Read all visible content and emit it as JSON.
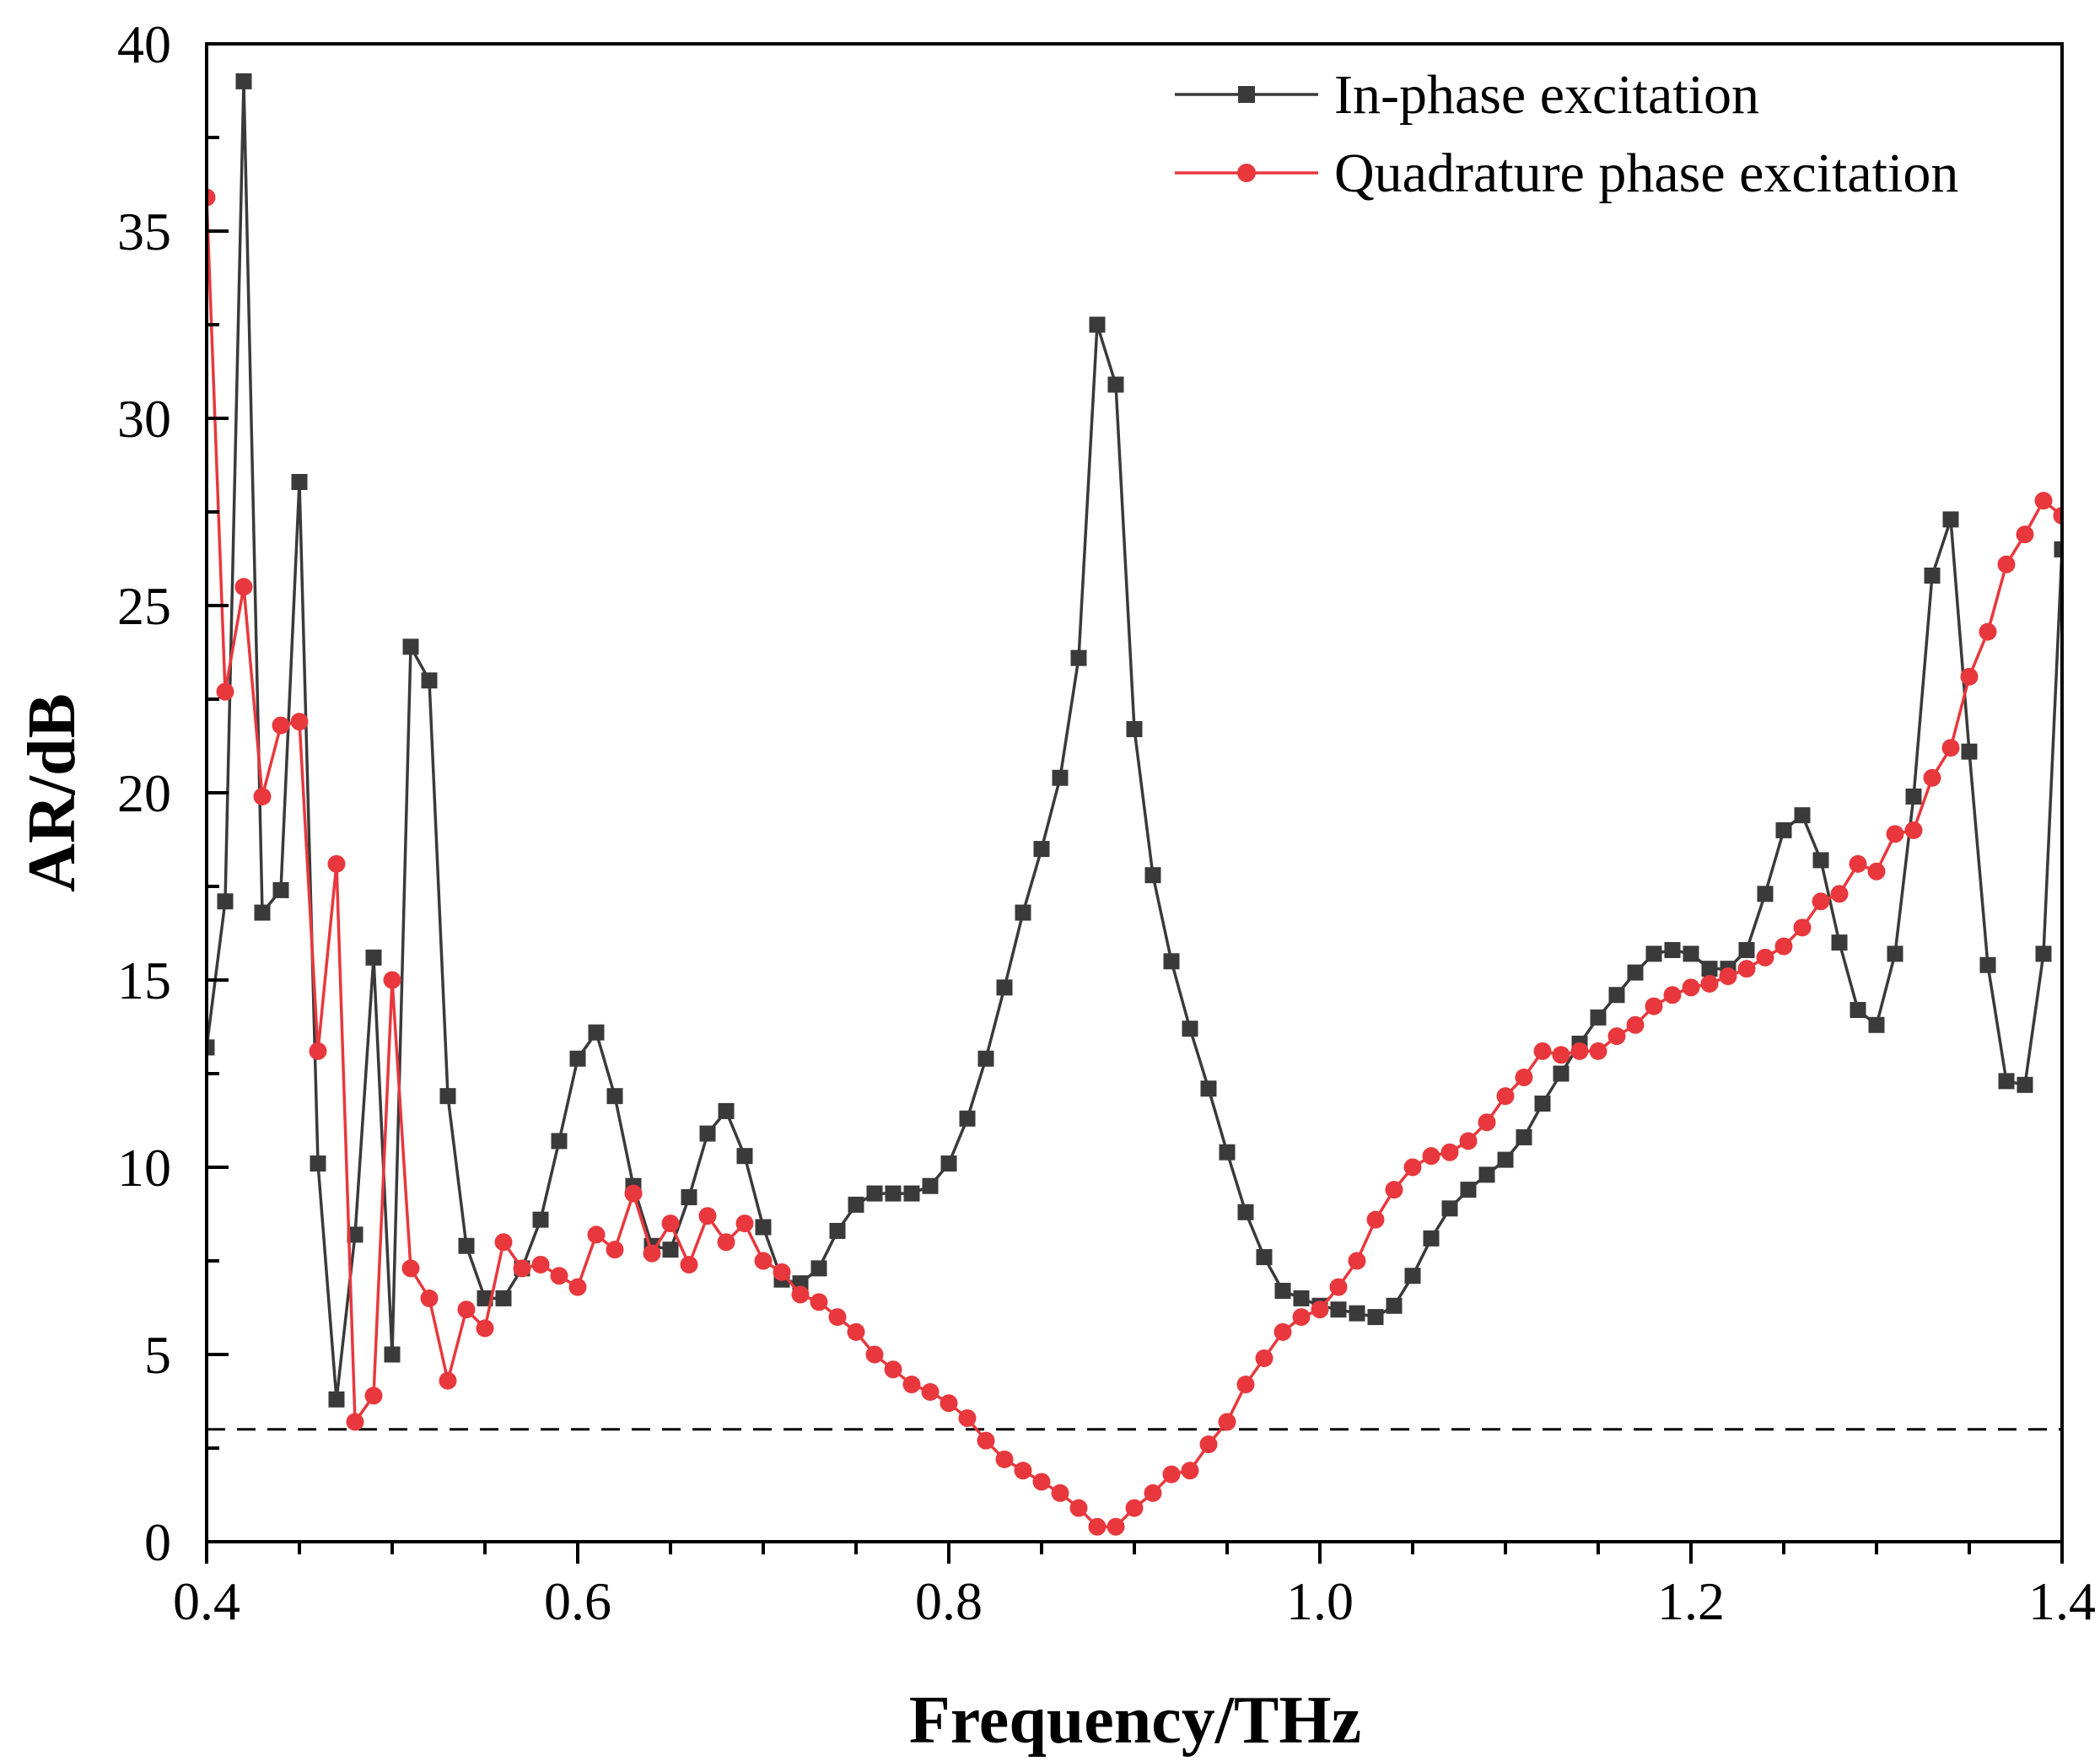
{
  "chart_data": {
    "type": "line",
    "xlabel": "Frequency/THz",
    "ylabel": "AR/dB",
    "xlim": [
      0.4,
      1.4
    ],
    "ylim": [
      0,
      40
    ],
    "x_ticks": [
      "0.4",
      "0.6",
      "0.8",
      "1.0",
      "1.2",
      "1.4"
    ],
    "x_tick_values": [
      0.4,
      0.6,
      0.8,
      1.0,
      1.2,
      1.4
    ],
    "y_ticks": [
      "0",
      "5",
      "10",
      "15",
      "20",
      "25",
      "30",
      "35",
      "40"
    ],
    "y_tick_values": [
      0,
      5,
      10,
      15,
      20,
      25,
      30,
      35,
      40
    ],
    "grid": false,
    "legend_position": "top-right",
    "reference_line": {
      "y": 3,
      "style": "dashed",
      "color": "#000000"
    },
    "x": [
      0.4,
      0.41,
      0.42,
      0.43,
      0.44,
      0.45,
      0.46,
      0.47,
      0.48,
      0.49,
      0.5,
      0.51,
      0.52,
      0.53,
      0.54,
      0.55,
      0.56,
      0.57,
      0.58,
      0.59,
      0.6,
      0.61,
      0.62,
      0.63,
      0.64,
      0.65,
      0.66,
      0.67,
      0.68,
      0.69,
      0.7,
      0.71,
      0.72,
      0.73,
      0.74,
      0.75,
      0.76,
      0.77,
      0.78,
      0.79,
      0.8,
      0.81,
      0.82,
      0.83,
      0.84,
      0.85,
      0.86,
      0.87,
      0.88,
      0.89,
      0.9,
      0.91,
      0.92,
      0.93,
      0.94,
      0.95,
      0.96,
      0.97,
      0.98,
      0.99,
      1.0,
      1.01,
      1.02,
      1.03,
      1.04,
      1.05,
      1.06,
      1.07,
      1.08,
      1.09,
      1.1,
      1.11,
      1.12,
      1.13,
      1.14,
      1.15,
      1.16,
      1.17,
      1.18,
      1.19,
      1.2,
      1.21,
      1.22,
      1.23,
      1.24,
      1.25,
      1.26,
      1.27,
      1.28,
      1.29,
      1.3,
      1.31,
      1.32,
      1.33,
      1.34,
      1.35,
      1.36,
      1.37,
      1.38,
      1.39,
      1.4
    ],
    "series": [
      {
        "name": "In-phase excitation",
        "color": "#3a3a3a",
        "marker": "square",
        "values": [
          13.2,
          17.1,
          39.0,
          16.8,
          17.4,
          28.3,
          10.1,
          3.8,
          8.2,
          15.6,
          5.0,
          23.9,
          23.0,
          11.9,
          7.9,
          6.5,
          6.5,
          7.3,
          8.6,
          10.7,
          12.9,
          13.6,
          11.9,
          9.5,
          7.9,
          7.8,
          9.2,
          10.9,
          11.5,
          10.3,
          8.4,
          7.0,
          6.9,
          7.3,
          8.3,
          9.0,
          9.3,
          9.3,
          9.3,
          9.5,
          10.1,
          11.3,
          12.9,
          14.8,
          16.8,
          18.5,
          20.4,
          23.6,
          32.5,
          30.9,
          21.7,
          17.8,
          15.5,
          13.7,
          12.1,
          10.4,
          8.8,
          7.6,
          6.7,
          6.5,
          6.3,
          6.2,
          6.1,
          6.0,
          6.3,
          7.1,
          8.1,
          8.9,
          9.4,
          9.8,
          10.2,
          10.8,
          11.7,
          12.5,
          13.3,
          14.0,
          14.6,
          15.2,
          15.7,
          15.8,
          15.7,
          15.3,
          15.3,
          15.8,
          17.3,
          19.0,
          19.4,
          18.2,
          16.0,
          14.2,
          13.8,
          15.7,
          19.9,
          25.8,
          27.3,
          21.1,
          15.4,
          12.3,
          12.2,
          15.7,
          26.5
        ]
      },
      {
        "name": "Quadrature phase excitation",
        "color": "#e8383d",
        "marker": "circle",
        "values": [
          35.9,
          22.7,
          25.5,
          19.9,
          21.8,
          21.9,
          13.1,
          18.1,
          3.2,
          3.9,
          15.0,
          7.3,
          6.5,
          4.3,
          6.2,
          5.7,
          8.0,
          7.3,
          7.4,
          7.1,
          6.8,
          8.2,
          7.8,
          9.3,
          7.7,
          8.5,
          7.4,
          8.7,
          8.0,
          8.5,
          7.5,
          7.2,
          6.6,
          6.4,
          6.0,
          5.6,
          5.0,
          4.6,
          4.2,
          4.0,
          3.7,
          3.3,
          2.7,
          2.2,
          1.9,
          1.6,
          1.3,
          0.9,
          0.4,
          0.4,
          0.9,
          1.3,
          1.8,
          1.9,
          2.6,
          3.2,
          4.2,
          4.9,
          5.6,
          6.0,
          6.2,
          6.8,
          7.5,
          8.6,
          9.4,
          10.0,
          10.3,
          10.4,
          10.7,
          11.2,
          11.9,
          12.4,
          13.1,
          13.0,
          13.1,
          13.1,
          13.5,
          13.8,
          14.3,
          14.6,
          14.8,
          14.9,
          15.1,
          15.3,
          15.6,
          15.9,
          16.4,
          17.1,
          17.3,
          18.1,
          17.9,
          18.9,
          19.0,
          20.4,
          21.2,
          23.1,
          24.3,
          26.1,
          26.9,
          27.8,
          27.4
        ]
      }
    ]
  }
}
